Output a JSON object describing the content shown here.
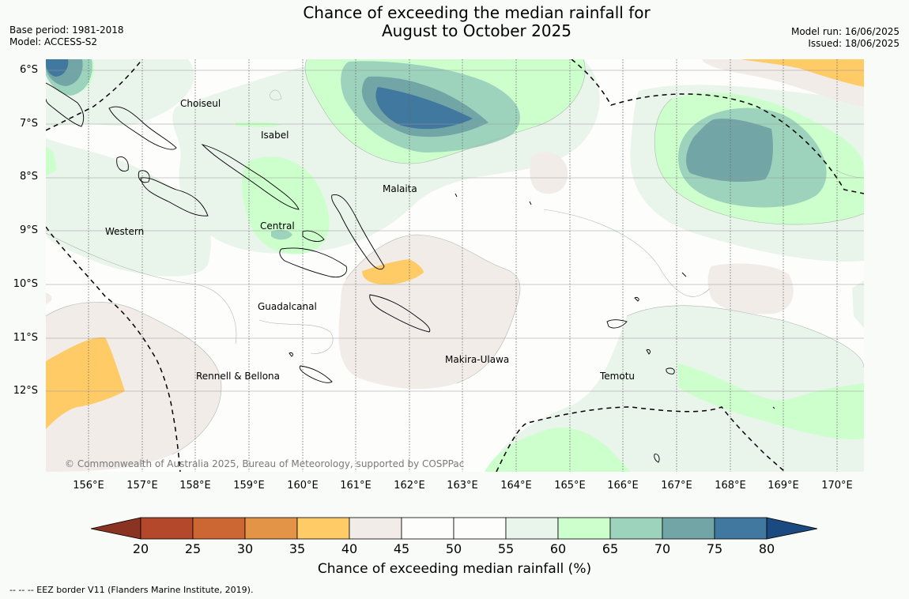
{
  "header": {
    "title_line1": "Chance of exceeding the median rainfall for",
    "title_line2": "August to October 2025",
    "base_period": "Base period: 1981-2018",
    "model": "Model: ACCESS-S2",
    "model_run": "Model run: 16/06/2025",
    "issued": "Issued: 18/06/2025"
  },
  "map": {
    "lat_labels": [
      "6°S",
      "7°S",
      "8°S",
      "9°S",
      "10°S",
      "11°S",
      "12°S"
    ],
    "lon_labels": [
      "156°E",
      "157°E",
      "158°E",
      "159°E",
      "160°E",
      "161°E",
      "162°E",
      "163°E",
      "164°E",
      "165°E",
      "166°E",
      "167°E",
      "168°E",
      "169°E",
      "170°E"
    ],
    "regions": {
      "choiseul": "Choiseul",
      "isabel": "Isabel",
      "malaita": "Malaita",
      "western": "Western",
      "central": "Central",
      "guadalcanal": "Guadalcanal",
      "makira": "Makira-Ulawa",
      "temotu": "Temotu",
      "rennell": "Rennell & Bellona"
    },
    "copyright": "© Commonwealth of Australia 2025, Bureau of Meteorology, supported by COSPPac"
  },
  "colorbar": {
    "title": "Chance of exceeding median rainfall (%)",
    "ticks": [
      "20",
      "25",
      "30",
      "35",
      "40",
      "45",
      "50",
      "55",
      "60",
      "65",
      "70",
      "75",
      "80"
    ],
    "colors": {
      "below_20": "#8b3322",
      "b20_25": "#b4482a",
      "b25_30": "#cc6633",
      "b30_35": "#e39447",
      "b35_40": "#fecb66",
      "b40_45": "#f1ece7",
      "b45_50": "#fdfdfc",
      "b50_55": "#fdfdfc",
      "b55_60": "#e9f4eb",
      "b60_65": "#ccffcc",
      "b65_70": "#9dd2bc",
      "b70_75": "#72a6a6",
      "b75_80": "#41789f",
      "above_80": "#1a4a80"
    }
  },
  "legend": {
    "eez": "--  --  -- EEZ border V11 (Flanders Marine Institute, 2019)."
  }
}
